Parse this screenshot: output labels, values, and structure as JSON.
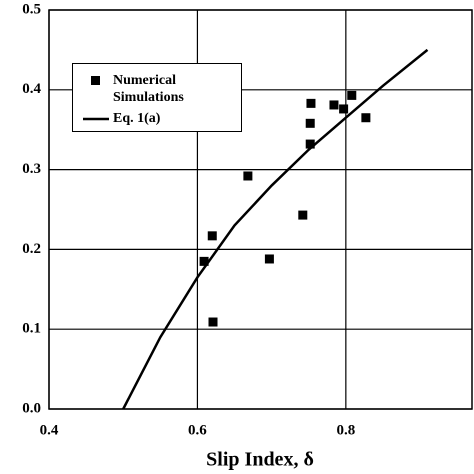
{
  "chart_data": {
    "type": "scatter",
    "x_label": "Slip Index, δ",
    "xlim": [
      0.4,
      0.97
    ],
    "ylim": [
      0,
      0.5
    ],
    "xticks": [
      0.4,
      0.6,
      0.8
    ],
    "yticks": [
      {
        "value": 0,
        "label": "0.0"
      },
      0.1,
      0.2,
      0.3,
      0.4,
      0.5
    ],
    "grid": true,
    "series": [
      {
        "name": "Numerical Simulations",
        "style": "square",
        "color": "#000000",
        "x": [
          0.609,
          0.62,
          0.621,
          0.668,
          0.697,
          0.742,
          0.752,
          0.752,
          0.753,
          0.784,
          0.797,
          0.808,
          0.827
        ],
        "values": [
          0.185,
          0.217,
          0.109,
          0.292,
          0.188,
          0.243,
          0.332,
          0.358,
          0.383,
          0.381,
          0.376,
          0.393,
          0.365
        ]
      },
      {
        "name": "Eq. 1(a)",
        "style": "line",
        "color": "#000000",
        "x": [
          0.5,
          0.55,
          0.6,
          0.65,
          0.7,
          0.75,
          0.8,
          0.85,
          0.91
        ],
        "values": [
          0,
          0.09,
          0.165,
          0.23,
          0.28,
          0.325,
          0.365,
          0.405,
          0.45
        ]
      }
    ]
  }
}
